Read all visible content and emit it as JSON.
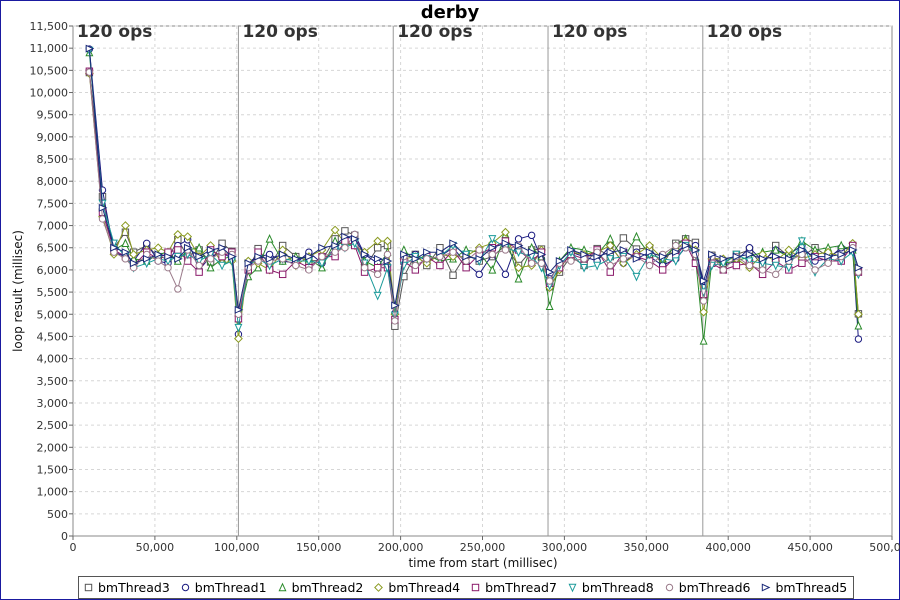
{
  "chart_data": {
    "type": "line",
    "title": "derby",
    "xlabel": "time from start (millisec)",
    "ylabel": "loop result (millisec)",
    "xlim": [
      0,
      500000
    ],
    "ylim": [
      0,
      11500
    ],
    "xticks": [
      0,
      50000,
      100000,
      150000,
      200000,
      250000,
      300000,
      350000,
      400000,
      450000,
      500000
    ],
    "xtick_labels": [
      "0",
      "50,000",
      "100,000",
      "150,000",
      "200,000",
      "250,000",
      "300,000",
      "350,000",
      "400,000",
      "450,000",
      "500,000"
    ],
    "yticks": [
      0,
      500,
      1000,
      1500,
      2000,
      2500,
      3000,
      3500,
      4000,
      4500,
      5000,
      5500,
      6000,
      6500,
      7000,
      7500,
      8000,
      8500,
      9000,
      9500,
      10000,
      10500,
      11000,
      11500
    ],
    "ytick_labels": [
      "0",
      "500",
      "1,000",
      "1,500",
      "2,000",
      "2,500",
      "3,000",
      "3,500",
      "4,000",
      "4,500",
      "5,000",
      "5,500",
      "6,000",
      "6,500",
      "7,000",
      "7,500",
      "8,000",
      "8,500",
      "9,000",
      "9,500",
      "10,000",
      "10,500",
      "11,000",
      "11,500"
    ],
    "grid": true,
    "legend_position": "bottom",
    "phase_markers": [
      {
        "x": 0,
        "label": "120 ops"
      },
      {
        "x": 101000,
        "label": "120 ops"
      },
      {
        "x": 195500,
        "label": "120 ops"
      },
      {
        "x": 290000,
        "label": "120 ops"
      },
      {
        "x": 384500,
        "label": "120 ops"
      }
    ],
    "x": [
      10000,
      18000,
      25000,
      32000,
      37000,
      45000,
      52000,
      58000,
      64000,
      70000,
      77000,
      84000,
      91000,
      97000,
      101000,
      107000,
      113000,
      120000,
      128000,
      136000,
      144000,
      152000,
      160000,
      166000,
      172000,
      178000,
      186000,
      192000,
      196500,
      202000,
      209000,
      216000,
      224000,
      232000,
      240000,
      248000,
      256000,
      264000,
      272000,
      280000,
      286000,
      291000,
      297000,
      304000,
      312000,
      320000,
      328000,
      336000,
      344000,
      352000,
      360000,
      368000,
      374000,
      380000,
      385000,
      390000,
      397000,
      405000,
      413000,
      421000,
      429000,
      437000,
      445000,
      453000,
      461000,
      469000,
      476000,
      479500
    ],
    "series": [
      {
        "name": "bmThread3",
        "color": "#555555",
        "marker": "square",
        "values": [
          10450,
          7650,
          6500,
          6850,
          6400,
          6550,
          6300,
          6250,
          6680,
          6300,
          6450,
          6180,
          6600,
          6420,
          5020,
          6000,
          6480,
          6100,
          6550,
          6300,
          6200,
          6220,
          6700,
          6880,
          6780,
          6050,
          6500,
          6550,
          4730,
          5850,
          6350,
          6100,
          6500,
          5880,
          6350,
          6200,
          6300,
          6550,
          6100,
          6450,
          6470,
          5620,
          5950,
          6300,
          6100,
          6480,
          6300,
          6720,
          6470,
          6500,
          6120,
          6600,
          6700,
          6620,
          5380,
          6330,
          6130,
          6350,
          6450,
          6100,
          6550,
          6300,
          6300,
          6500,
          6300,
          6450,
          6550,
          5010
        ]
      },
      {
        "name": "bmThread1",
        "color": "#1a1a80",
        "marker": "circle",
        "values": [
          10980,
          7800,
          6400,
          6300,
          6200,
          6600,
          6200,
          6150,
          6550,
          6680,
          6000,
          6300,
          6400,
          6250,
          4550,
          6180,
          6300,
          6350,
          6200,
          6150,
          6400,
          6150,
          6500,
          6700,
          6800,
          6350,
          6150,
          6100,
          5020,
          6350,
          6350,
          6200,
          6300,
          6500,
          6150,
          5900,
          6350,
          5900,
          6700,
          6780,
          6250,
          5800,
          6100,
          6400,
          6300,
          6200,
          6550,
          6150,
          6400,
          6300,
          6100,
          6250,
          6500,
          6550,
          5600,
          6300,
          6100,
          6200,
          6500,
          6200,
          6450,
          6350,
          6550,
          6200,
          6250,
          6500,
          6450,
          4440
        ]
      },
      {
        "name": "bmThread2",
        "color": "#2a8a2a",
        "marker": "triangle-up",
        "values": [
          10900,
          7450,
          6450,
          6600,
          6250,
          6200,
          6350,
          6400,
          6200,
          6450,
          6500,
          6050,
          6250,
          6300,
          4900,
          5850,
          6050,
          6700,
          6200,
          6300,
          6250,
          6050,
          6650,
          6550,
          6600,
          6200,
          6050,
          6400,
          4950,
          6450,
          6200,
          6350,
          6200,
          6250,
          6450,
          6400,
          6000,
          6800,
          5800,
          6500,
          6300,
          5180,
          6200,
          6500,
          6450,
          6350,
          6700,
          6250,
          6750,
          6350,
          6250,
          6550,
          6700,
          6300,
          4400,
          6200,
          6150,
          6200,
          6300,
          6400,
          6450,
          6300,
          6650,
          6450,
          6500,
          6550,
          6450,
          4740
        ]
      },
      {
        "name": "bmThread4",
        "color": "#8a9a20",
        "marker": "diamond",
        "values": [
          10430,
          7200,
          6350,
          7000,
          6350,
          6450,
          6500,
          6400,
          6800,
          6750,
          6300,
          6550,
          6150,
          6200,
          4450,
          6200,
          6150,
          6000,
          6450,
          6100,
          6300,
          6450,
          6900,
          6600,
          6550,
          6400,
          6650,
          6650,
          5000,
          6250,
          6300,
          6150,
          6350,
          6300,
          6300,
          6500,
          6600,
          6850,
          6050,
          6100,
          6450,
          5600,
          6000,
          6400,
          6350,
          6400,
          6550,
          6150,
          6350,
          6550,
          6250,
          6450,
          6650,
          6450,
          5050,
          6250,
          6250,
          6250,
          6050,
          6350,
          6200,
          6450,
          6250,
          6350,
          6400,
          6300,
          6600,
          5000
        ]
      },
      {
        "name": "bmThread7",
        "color": "#8a1a6a",
        "marker": "square",
        "values": [
          10480,
          7300,
          6450,
          6300,
          6100,
          6400,
          6250,
          6400,
          6450,
          6200,
          5950,
          6450,
          6300,
          6400,
          4900,
          6000,
          6400,
          6000,
          5900,
          6200,
          6050,
          6300,
          6300,
          6650,
          6550,
          5950,
          6050,
          6050,
          4880,
          6200,
          6000,
          6300,
          6100,
          6450,
          6050,
          6350,
          6500,
          6650,
          6450,
          6200,
          6400,
          5700,
          6050,
          6350,
          6250,
          6450,
          5950,
          6400,
          6300,
          6200,
          6000,
          6300,
          6600,
          6150,
          5450,
          6150,
          6000,
          6100,
          6150,
          5900,
          6200,
          6000,
          6150,
          6300,
          6200,
          6200,
          6550,
          5950
        ]
      },
      {
        "name": "bmThread8",
        "color": "#1a9a9a",
        "marker": "triangle-down",
        "values": [
          10950,
          7500,
          6600,
          6300,
          6050,
          6150,
          6250,
          6200,
          6300,
          6350,
          6200,
          6350,
          6100,
          6200,
          4700,
          6100,
          6250,
          6100,
          6250,
          6200,
          6200,
          6150,
          6450,
          6500,
          6600,
          6150,
          5420,
          6050,
          4980,
          6100,
          6300,
          6250,
          6300,
          6550,
          6350,
          6200,
          6700,
          6500,
          6400,
          6300,
          6050,
          5650,
          6100,
          6400,
          6050,
          6100,
          6250,
          6300,
          5850,
          6350,
          6250,
          6200,
          6550,
          6350,
          5500,
          6100,
          6150,
          6350,
          6200,
          6150,
          6100,
          6050,
          6650,
          5950,
          6250,
          6200,
          6400,
          5900
        ]
      },
      {
        "name": "bmThread6",
        "color": "#9a7a8a",
        "marker": "circle",
        "values": [
          10460,
          7150,
          6400,
          6250,
          6050,
          6350,
          6200,
          6050,
          5570,
          6450,
          6100,
          6250,
          6400,
          6350,
          5000,
          6050,
          6200,
          6200,
          6250,
          6100,
          6000,
          6300,
          6400,
          6500,
          6800,
          6050,
          5900,
          6350,
          4850,
          6300,
          6100,
          6250,
          6300,
          6400,
          6200,
          6450,
          6350,
          6450,
          6550,
          6150,
          6150,
          5750,
          6150,
          6200,
          6250,
          6400,
          6100,
          6250,
          6300,
          6100,
          6350,
          6550,
          6500,
          6350,
          5300,
          6300,
          6000,
          6300,
          6100,
          6000,
          5900,
          6200,
          6350,
          6000,
          6150,
          6300,
          6500,
          5950
        ]
      },
      {
        "name": "bmThread5",
        "color": "#1a2a7a",
        "marker": "triangle-right",
        "values": [
          10990,
          7400,
          6500,
          6400,
          6150,
          6250,
          6350,
          6300,
          6250,
          6500,
          6300,
          6450,
          6500,
          6300,
          5100,
          6150,
          6300,
          6250,
          6350,
          6250,
          6300,
          6500,
          6550,
          6750,
          6700,
          6350,
          6250,
          6200,
          5200,
          6350,
          6250,
          6400,
          6400,
          6600,
          6300,
          6250,
          6500,
          6600,
          6550,
          6400,
          6350,
          5950,
          6200,
          6450,
          6350,
          6300,
          6400,
          6450,
          6250,
          6400,
          6300,
          6400,
          6550,
          6450,
          5750,
          6350,
          6250,
          6300,
          6350,
          6250,
          6300,
          6250,
          6450,
          6300,
          6300,
          6350,
          6450,
          6050
        ]
      }
    ]
  }
}
